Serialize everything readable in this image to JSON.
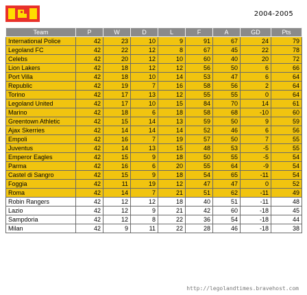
{
  "header": {
    "logo_icon": "lego-brick-icon",
    "logo_color": "#e8312a",
    "season": "2004-2005"
  },
  "table": {
    "columns": [
      "Team",
      "P",
      "W",
      "D",
      "L",
      "F",
      "A",
      "GD",
      "Pts"
    ],
    "highlight_color": "#f1c40f",
    "rows": [
      {
        "team": "International Police",
        "p": "42",
        "w": "23",
        "d": "10",
        "l": "9",
        "f": "91",
        "a": "67",
        "gd": "24",
        "pts": "79",
        "hl": true
      },
      {
        "team": "Legoland FC",
        "p": "42",
        "w": "22",
        "d": "12",
        "l": "8",
        "f": "67",
        "a": "45",
        "gd": "22",
        "pts": "78",
        "hl": true
      },
      {
        "team": "Celebs",
        "p": "42",
        "w": "20",
        "d": "12",
        "l": "10",
        "f": "60",
        "a": "40",
        "gd": "20",
        "pts": "72",
        "hl": true
      },
      {
        "team": "Lion Lakers",
        "p": "42",
        "w": "18",
        "d": "12",
        "l": "12",
        "f": "56",
        "a": "50",
        "gd": "6",
        "pts": "66",
        "hl": true
      },
      {
        "team": "Port Villa",
        "p": "42",
        "w": "18",
        "d": "10",
        "l": "14",
        "f": "53",
        "a": "47",
        "gd": "6",
        "pts": "64",
        "hl": true
      },
      {
        "team": "Republic",
        "p": "42",
        "w": "19",
        "d": "7",
        "l": "16",
        "f": "58",
        "a": "56",
        "gd": "2",
        "pts": "64",
        "hl": true
      },
      {
        "team": "Torino",
        "p": "42",
        "w": "17",
        "d": "13",
        "l": "12",
        "f": "55",
        "a": "55",
        "gd": "0",
        "pts": "64",
        "hl": true
      },
      {
        "team": "Legoland United",
        "p": "42",
        "w": "17",
        "d": "10",
        "l": "15",
        "f": "84",
        "a": "70",
        "gd": "14",
        "pts": "61",
        "hl": true
      },
      {
        "team": "Marino",
        "p": "42",
        "w": "18",
        "d": "6",
        "l": "18",
        "f": "58",
        "a": "68",
        "gd": "-10",
        "pts": "60",
        "hl": true
      },
      {
        "team": "Greentown Athletic",
        "p": "42",
        "w": "15",
        "d": "14",
        "l": "13",
        "f": "59",
        "a": "50",
        "gd": "9",
        "pts": "59",
        "hl": true
      },
      {
        "team": "Ajax Skerries",
        "p": "42",
        "w": "14",
        "d": "14",
        "l": "14",
        "f": "52",
        "a": "46",
        "gd": "6",
        "pts": "56",
        "hl": true
      },
      {
        "team": "Empoli",
        "p": "42",
        "w": "16",
        "d": "7",
        "l": "19",
        "f": "57",
        "a": "50",
        "gd": "7",
        "pts": "55",
        "hl": true
      },
      {
        "team": "Juventus",
        "p": "42",
        "w": "14",
        "d": "13",
        "l": "15",
        "f": "48",
        "a": "53",
        "gd": "-5",
        "pts": "55",
        "hl": true
      },
      {
        "team": "Emperor Eagles",
        "p": "42",
        "w": "15",
        "d": "9",
        "l": "18",
        "f": "50",
        "a": "55",
        "gd": "-5",
        "pts": "54",
        "hl": true
      },
      {
        "team": "Parma",
        "p": "42",
        "w": "16",
        "d": "6",
        "l": "20",
        "f": "55",
        "a": "64",
        "gd": "-9",
        "pts": "54",
        "hl": true
      },
      {
        "team": "Castel di Sangro",
        "p": "42",
        "w": "15",
        "d": "9",
        "l": "18",
        "f": "54",
        "a": "65",
        "gd": "-11",
        "pts": "54",
        "hl": true
      },
      {
        "team": "Foggia",
        "p": "42",
        "w": "11",
        "d": "19",
        "l": "12",
        "f": "47",
        "a": "47",
        "gd": "0",
        "pts": "52",
        "hl": true
      },
      {
        "team": "Roma",
        "p": "42",
        "w": "14",
        "d": "7",
        "l": "21",
        "f": "51",
        "a": "62",
        "gd": "-11",
        "pts": "49",
        "hl": true
      },
      {
        "team": "Robin Rangers",
        "p": "42",
        "w": "12",
        "d": "12",
        "l": "18",
        "f": "40",
        "a": "51",
        "gd": "-11",
        "pts": "48",
        "hl": false
      },
      {
        "team": "Lazio",
        "p": "42",
        "w": "12",
        "d": "9",
        "l": "21",
        "f": "42",
        "a": "60",
        "gd": "-18",
        "pts": "45",
        "hl": false
      },
      {
        "team": "Sampdoria",
        "p": "42",
        "w": "12",
        "d": "8",
        "l": "22",
        "f": "36",
        "a": "54",
        "gd": "-18",
        "pts": "44",
        "hl": false
      },
      {
        "team": "Milan",
        "p": "42",
        "w": "9",
        "d": "11",
        "l": "22",
        "f": "28",
        "a": "46",
        "gd": "-18",
        "pts": "38",
        "hl": false
      }
    ]
  },
  "footer": {
    "url": "http://legolandtimes.bravehost.com"
  }
}
